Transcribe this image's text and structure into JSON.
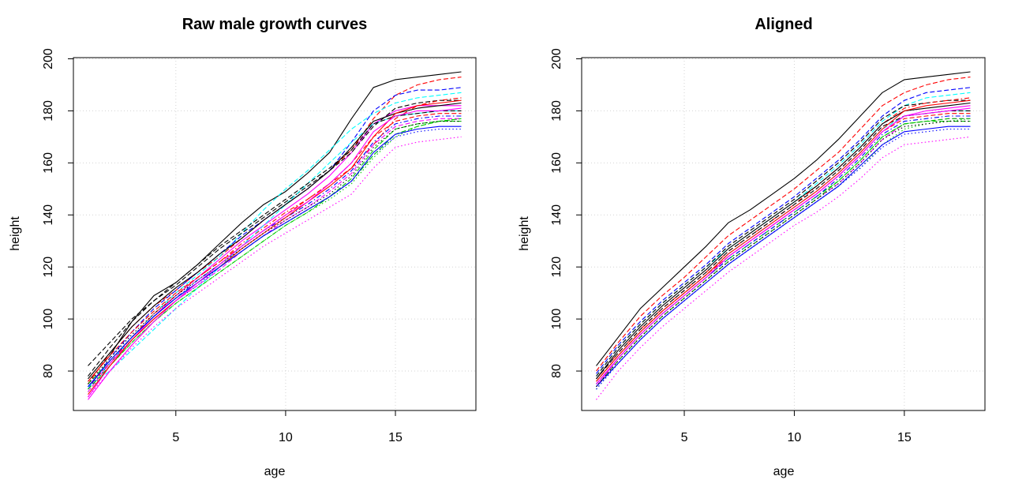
{
  "chart_data": [
    {
      "type": "line",
      "title": "Raw male growth curves",
      "xlabel": "age",
      "ylabel": "height",
      "xlim": [
        1,
        18
      ],
      "ylim": [
        70,
        200
      ],
      "xticks": [
        "5",
        "10",
        "15"
      ],
      "yticks": [
        "80",
        "100",
        "120",
        "140",
        "160",
        "180",
        "200"
      ],
      "grid": true,
      "legend": "none",
      "x": [
        1,
        2,
        3,
        4,
        5,
        6,
        7,
        8,
        9,
        10,
        11,
        12,
        13,
        14,
        15,
        16,
        17,
        18
      ],
      "series": [
        {
          "color": "#000000",
          "dash": "solid",
          "values": [
            76,
            86,
            99,
            109,
            114,
            121,
            129,
            137,
            144,
            149,
            156,
            164,
            177,
            189,
            192,
            193,
            194,
            195
          ]
        },
        {
          "color": "#ff0000",
          "dash": "dashed",
          "values": [
            75,
            87,
            97,
            105,
            111,
            118,
            124,
            131,
            138,
            144,
            150,
            157,
            165,
            177,
            186,
            190,
            192,
            193
          ]
        },
        {
          "color": "#00ffff",
          "dash": "dashed",
          "values": [
            74,
            83,
            93,
            102,
            110,
            117,
            124,
            133,
            142,
            150,
            157,
            165,
            173,
            179,
            183,
            185,
            186,
            187
          ]
        },
        {
          "color": "#0000ff",
          "dash": "dashed",
          "values": [
            73,
            85,
            95,
            104,
            111,
            118,
            125,
            132,
            138,
            144,
            150,
            157,
            168,
            180,
            186,
            188,
            188,
            189
          ]
        },
        {
          "color": "#ff00ff",
          "dash": "solid",
          "values": [
            70,
            82,
            92,
            101,
            109,
            116,
            123,
            130,
            136,
            142,
            148,
            155,
            164,
            175,
            180,
            182,
            182,
            182
          ]
        },
        {
          "color": "#00cd00",
          "dash": "dotted",
          "values": [
            72,
            82,
            91,
            99,
            106,
            112,
            118,
            124,
            130,
            136,
            141,
            146,
            152,
            162,
            170,
            174,
            176,
            177
          ]
        },
        {
          "color": "#000000",
          "dash": "dashed",
          "values": [
            82,
            91,
            100,
            107,
            113,
            120,
            127,
            133,
            139,
            145,
            151,
            157,
            164,
            174,
            181,
            183,
            184,
            184
          ]
        },
        {
          "color": "#ff0000",
          "dash": "dotdash",
          "values": [
            74,
            83,
            93,
            102,
            109,
            116,
            122,
            129,
            135,
            141,
            146,
            152,
            158,
            167,
            177,
            182,
            184,
            185
          ]
        },
        {
          "color": "#00ffff",
          "dash": "dashed",
          "values": [
            74,
            80,
            88,
            96,
            104,
            112,
            120,
            128,
            136,
            144,
            152,
            160,
            168,
            175,
            178,
            179,
            180,
            180
          ]
        },
        {
          "color": "#0000ff",
          "dash": "dotted",
          "values": [
            73,
            83,
            92,
            100,
            107,
            113,
            120,
            126,
            132,
            137,
            142,
            147,
            153,
            163,
            170,
            172,
            173,
            173
          ]
        },
        {
          "color": "#ff00ff",
          "dash": "dashed",
          "values": [
            72,
            83,
            92,
            100,
            107,
            113,
            119,
            126,
            132,
            138,
            143,
            149,
            156,
            167,
            174,
            176,
            177,
            177
          ]
        },
        {
          "color": "#00cd00",
          "dash": "dashed",
          "values": [
            75,
            84,
            93,
            101,
            108,
            114,
            120,
            126,
            132,
            137,
            142,
            147,
            153,
            163,
            171,
            174,
            176,
            176
          ]
        },
        {
          "color": "#000000",
          "dash": "solid",
          "values": [
            77,
            87,
            97,
            105,
            112,
            118,
            125,
            131,
            138,
            144,
            150,
            157,
            166,
            176,
            179,
            181,
            182,
            183
          ]
        },
        {
          "color": "#ff0000",
          "dash": "dashed",
          "values": [
            76,
            86,
            95,
            103,
            110,
            116,
            122,
            128,
            134,
            140,
            146,
            152,
            160,
            170,
            176,
            178,
            179,
            179
          ]
        },
        {
          "color": "#0000ff",
          "dash": "dashdot",
          "values": [
            74,
            84,
            93,
            101,
            108,
            115,
            121,
            128,
            134,
            139,
            144,
            150,
            157,
            168,
            175,
            177,
            178,
            178
          ]
        },
        {
          "color": "#ff00ff",
          "dash": "dotted",
          "values": [
            70,
            80,
            89,
            97,
            104,
            110,
            116,
            122,
            128,
            133,
            138,
            143,
            148,
            158,
            166,
            168,
            169,
            170
          ]
        },
        {
          "color": "#000000",
          "dash": "dashed",
          "values": [
            78,
            89,
            99,
            107,
            114,
            121,
            128,
            134,
            140,
            146,
            152,
            158,
            165,
            175,
            178,
            179,
            180,
            180
          ]
        },
        {
          "color": "#00cd00",
          "dash": "dashed",
          "values": [
            73,
            82,
            91,
            99,
            106,
            112,
            118,
            124,
            130,
            136,
            141,
            147,
            154,
            165,
            173,
            175,
            176,
            177
          ]
        },
        {
          "color": "#ff0000",
          "dash": "solid",
          "values": [
            71,
            82,
            92,
            100,
            107,
            114,
            120,
            127,
            133,
            139,
            145,
            151,
            158,
            170,
            179,
            182,
            183,
            184
          ]
        },
        {
          "color": "#0000ff",
          "dash": "solid",
          "values": [
            74,
            84,
            93,
            101,
            108,
            114,
            120,
            126,
            132,
            137,
            142,
            147,
            153,
            164,
            171,
            173,
            174,
            174
          ]
        },
        {
          "color": "#000000",
          "dash": "dotted",
          "values": [
            75,
            85,
            94,
            102,
            109,
            115,
            121,
            127,
            133,
            138,
            143,
            148,
            155,
            166,
            173,
            175,
            176,
            176
          ]
        },
        {
          "color": "#ff00ff",
          "dash": "solid",
          "values": [
            69,
            80,
            90,
            99,
            107,
            114,
            121,
            128,
            134,
            140,
            145,
            152,
            160,
            172,
            178,
            180,
            180,
            181
          ]
        }
      ]
    },
    {
      "type": "line",
      "title": "Aligned",
      "xlabel": "age",
      "ylabel": "height",
      "xlim": [
        1,
        18
      ],
      "ylim": [
        70,
        200
      ],
      "xticks": [
        "5",
        "10",
        "15"
      ],
      "yticks": [
        "80",
        "100",
        "120",
        "140",
        "160",
        "180",
        "200"
      ],
      "grid": true,
      "legend": "none",
      "x": [
        1,
        2,
        3,
        4,
        5,
        6,
        7,
        8,
        9,
        10,
        11,
        12,
        13,
        14,
        15,
        16,
        17,
        18
      ],
      "series": [
        {
          "color": "#000000",
          "dash": "solid",
          "values": [
            82,
            93,
            104,
            112,
            120,
            128,
            137,
            142,
            148,
            154,
            161,
            169,
            178,
            187,
            192,
            193,
            194,
            195
          ]
        },
        {
          "color": "#ff0000",
          "dash": "dashed",
          "values": [
            80,
            91,
            101,
            109,
            116,
            124,
            132,
            138,
            144,
            150,
            157,
            164,
            173,
            182,
            187,
            190,
            192,
            193
          ]
        },
        {
          "color": "#00ffff",
          "dash": "dashed",
          "values": [
            78,
            89,
            98,
            106,
            113,
            120,
            127,
            133,
            139,
            145,
            152,
            159,
            167,
            176,
            182,
            185,
            186,
            187
          ]
        },
        {
          "color": "#0000ff",
          "dash": "dashed",
          "values": [
            79,
            90,
            99,
            107,
            114,
            121,
            129,
            135,
            141,
            147,
            154,
            161,
            169,
            178,
            184,
            187,
            188,
            189
          ]
        },
        {
          "color": "#ff00ff",
          "dash": "solid",
          "values": [
            74,
            85,
            94,
            102,
            109,
            116,
            124,
            130,
            136,
            142,
            148,
            155,
            163,
            172,
            178,
            180,
            181,
            182
          ]
        },
        {
          "color": "#00cd00",
          "dash": "dotted",
          "values": [
            73,
            83,
            92,
            100,
            107,
            114,
            121,
            127,
            133,
            139,
            145,
            151,
            158,
            167,
            173,
            175,
            176,
            177
          ]
        },
        {
          "color": "#000000",
          "dash": "dashed",
          "values": [
            78,
            89,
            98,
            106,
            113,
            120,
            128,
            134,
            140,
            146,
            153,
            160,
            168,
            177,
            182,
            183,
            184,
            184
          ]
        },
        {
          "color": "#ff0000",
          "dash": "dotdash",
          "values": [
            77,
            87,
            96,
            104,
            111,
            118,
            126,
            132,
            138,
            144,
            151,
            158,
            166,
            175,
            181,
            183,
            184,
            185
          ]
        },
        {
          "color": "#00ffff",
          "dash": "dashed",
          "values": [
            76,
            86,
            95,
            103,
            110,
            117,
            125,
            131,
            137,
            143,
            149,
            156,
            164,
            173,
            178,
            179,
            180,
            180
          ]
        },
        {
          "color": "#0000ff",
          "dash": "dotted",
          "values": [
            73,
            83,
            92,
            100,
            107,
            114,
            121,
            127,
            133,
            139,
            145,
            151,
            158,
            166,
            171,
            172,
            173,
            173
          ]
        },
        {
          "color": "#ff00ff",
          "dash": "dashed",
          "values": [
            74,
            84,
            93,
            101,
            108,
            115,
            122,
            128,
            134,
            140,
            146,
            152,
            160,
            169,
            175,
            176,
            177,
            177
          ]
        },
        {
          "color": "#00cd00",
          "dash": "dashed",
          "values": [
            75,
            85,
            94,
            102,
            109,
            116,
            123,
            129,
            135,
            141,
            147,
            153,
            161,
            170,
            175,
            176,
            176,
            176
          ]
        },
        {
          "color": "#000000",
          "dash": "solid",
          "values": [
            77,
            88,
            97,
            105,
            112,
            119,
            127,
            133,
            139,
            145,
            151,
            158,
            166,
            175,
            180,
            181,
            182,
            183
          ]
        },
        {
          "color": "#ff0000",
          "dash": "dashed",
          "values": [
            76,
            86,
            95,
            103,
            110,
            117,
            124,
            130,
            136,
            142,
            148,
            155,
            163,
            172,
            177,
            178,
            179,
            179
          ]
        },
        {
          "color": "#0000ff",
          "dash": "dashdot",
          "values": [
            75,
            85,
            94,
            102,
            109,
            116,
            123,
            129,
            135,
            141,
            147,
            154,
            162,
            171,
            176,
            177,
            178,
            178
          ]
        },
        {
          "color": "#ff00ff",
          "dash": "dotted",
          "values": [
            69,
            80,
            89,
            97,
            104,
            111,
            118,
            124,
            130,
            136,
            141,
            147,
            154,
            162,
            167,
            168,
            169,
            170
          ]
        },
        {
          "color": "#000000",
          "dash": "dashed",
          "values": [
            77,
            87,
            96,
            104,
            111,
            118,
            126,
            132,
            138,
            144,
            150,
            157,
            165,
            174,
            178,
            179,
            180,
            180
          ]
        },
        {
          "color": "#00cd00",
          "dash": "dashed",
          "values": [
            74,
            84,
            93,
            101,
            108,
            115,
            122,
            128,
            134,
            140,
            146,
            153,
            161,
            170,
            175,
            176,
            177,
            177
          ]
        },
        {
          "color": "#ff0000",
          "dash": "solid",
          "values": [
            76,
            86,
            95,
            103,
            110,
            117,
            125,
            131,
            137,
            143,
            149,
            156,
            164,
            173,
            180,
            182,
            183,
            184
          ]
        },
        {
          "color": "#0000ff",
          "dash": "solid",
          "values": [
            74,
            83,
            92,
            100,
            107,
            114,
            121,
            127,
            133,
            139,
            145,
            151,
            159,
            167,
            172,
            173,
            174,
            174
          ]
        },
        {
          "color": "#000000",
          "dash": "dotted",
          "values": [
            74,
            84,
            93,
            101,
            108,
            115,
            122,
            128,
            134,
            140,
            146,
            152,
            160,
            169,
            174,
            175,
            176,
            176
          ]
        },
        {
          "color": "#ff00ff",
          "dash": "solid",
          "values": [
            75,
            85,
            94,
            102,
            109,
            116,
            124,
            130,
            136,
            142,
            148,
            155,
            163,
            172,
            178,
            179,
            180,
            181
          ]
        }
      ]
    }
  ]
}
